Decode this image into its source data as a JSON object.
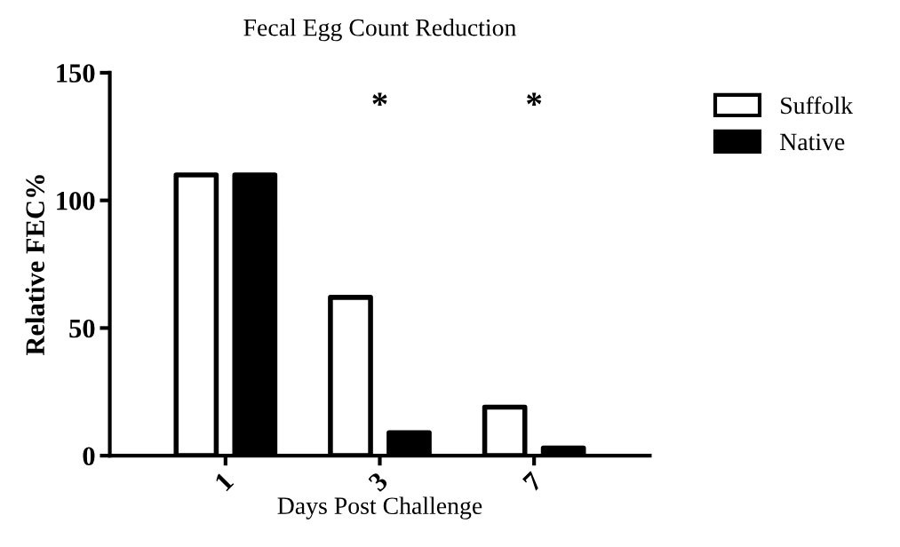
{
  "chart_data": {
    "type": "bar",
    "title": "Fecal Egg Count Reduction",
    "xlabel": "Days Post Challenge",
    "ylabel": "Relative FEC%",
    "categories": [
      "1",
      "3",
      "7"
    ],
    "series": [
      {
        "name": "Suffolk",
        "color": "#ffffff",
        "values": [
          110,
          62,
          19
        ]
      },
      {
        "name": "Native",
        "color": "#000000",
        "values": [
          110,
          9,
          3
        ]
      }
    ],
    "ylim": [
      0,
      150
    ],
    "yticks": [
      0,
      50,
      100,
      150
    ],
    "grid": false,
    "legend": "top right",
    "annotations": [
      "*",
      "*"
    ]
  }
}
